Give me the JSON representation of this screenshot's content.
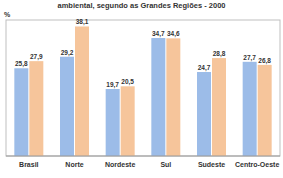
{
  "chart_data": {
    "type": "bar",
    "title": "ambiental, segundo as Grandes Regiões - 2000",
    "y_label": "%",
    "categories": [
      "Brasil",
      "Norte",
      "Nordeste",
      "Sul",
      "Sudeste",
      "Centro-Oeste"
    ],
    "series": [
      {
        "color": "#9cbce8",
        "values": [
          25.8,
          29.2,
          19.7,
          34.7,
          24.7,
          27.7
        ],
        "value_labels": [
          "25,8",
          "29,2",
          "19,7",
          "34,7",
          "24,7",
          "27,7"
        ]
      },
      {
        "color": "#f6c59b",
        "values": [
          27.9,
          38.1,
          20.5,
          34.6,
          28.8,
          26.8
        ],
        "value_labels": [
          "27,9",
          "38,1",
          "20,5",
          "34,6",
          "28,8",
          "26,8"
        ]
      }
    ],
    "ylim": [
      0,
      40
    ],
    "data_labels": true,
    "tick_labels": "x",
    "grid": false
  }
}
